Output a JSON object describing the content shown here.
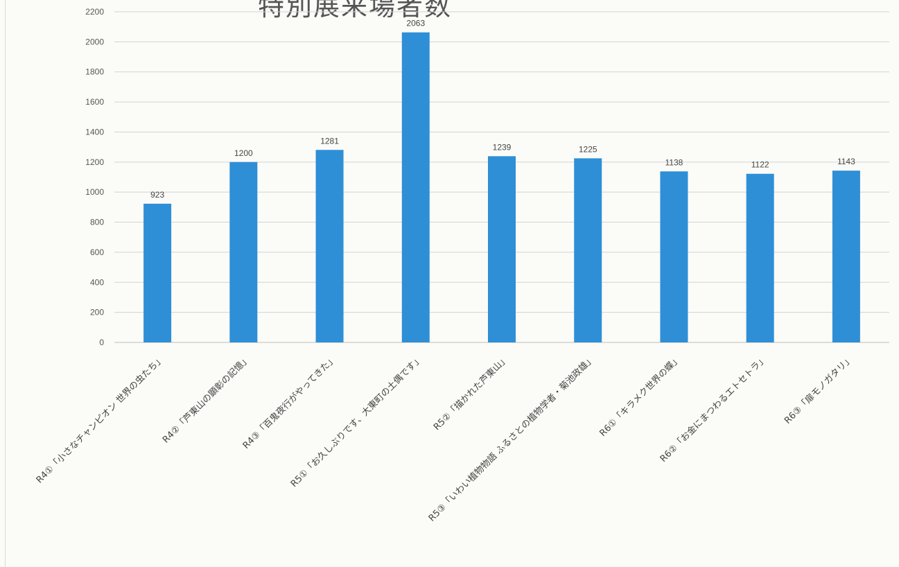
{
  "title": "特別展来場者数",
  "colors": {
    "bar": "#2e8fd6",
    "grid": "#d3d3d3",
    "axis": "#bdbdbd"
  },
  "chart_data": {
    "type": "bar",
    "title": "特別展来場者数",
    "xlabel": "",
    "ylabel": "",
    "ylim": [
      0,
      2200
    ],
    "yticks": [
      0,
      200,
      400,
      600,
      800,
      1000,
      1200,
      1400,
      1600,
      1800,
      2000,
      2200
    ],
    "grid": true,
    "categories": [
      "R4①「小さなチャンピオン 世界の虫たち」",
      "R4②「芦東山の顕彰の記憶」",
      "R4③「百鬼夜行がやってきた」",
      "R5①「お久しぶりです、大東町の土偶です」",
      "R5②「描かれた芦東山」",
      "R5③「いわい植物物語 ふるさとの植物学者・菊池政雄」",
      "R6①「キラメク世界の蝶」",
      "R6②「お金にまつわるエトセトラ」",
      "R6③「扉モノガタリ」"
    ],
    "values": [
      923,
      1200,
      1281,
      2063,
      1239,
      1225,
      1138,
      1122,
      1143
    ]
  }
}
